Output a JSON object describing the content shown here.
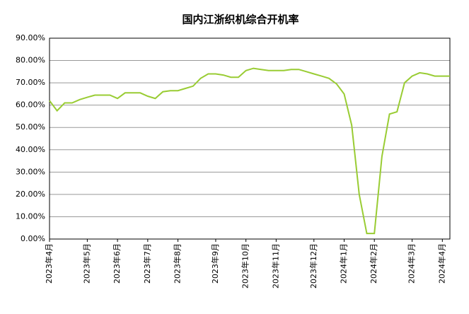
{
  "chart_data": {
    "type": "line",
    "title": "国内江浙织机综合开机率",
    "categories": [
      "2023年4月",
      null,
      null,
      null,
      null,
      "2023年5月",
      null,
      null,
      null,
      "2023年6月",
      null,
      null,
      null,
      "2023年7月",
      null,
      null,
      null,
      "2023年8月",
      null,
      null,
      null,
      null,
      "2023年9月",
      null,
      null,
      null,
      "2023年10月",
      null,
      null,
      null,
      "2023年11月",
      null,
      null,
      null,
      null,
      "2023年12月",
      null,
      null,
      null,
      "2024年1月",
      null,
      null,
      null,
      "2024年2月",
      null,
      null,
      null,
      null,
      "2024年3月",
      null,
      null,
      null,
      "2024年4月",
      null
    ],
    "series": [
      {
        "color": "#99cc33",
        "values": [
          62,
          57.5,
          61,
          61,
          62.5,
          63.5,
          64.5,
          64.5,
          64.5,
          63,
          65.5,
          65.5,
          65.5,
          64,
          63,
          66,
          66.5,
          66.5,
          67.5,
          68.5,
          72,
          74,
          74,
          73.5,
          72.5,
          72.5,
          75.5,
          76.5,
          76,
          75.5,
          75.5,
          75.5,
          76,
          76,
          75,
          74,
          73,
          72,
          69.5,
          65,
          51,
          20,
          2.5,
          2.5,
          37,
          56,
          57,
          70,
          73,
          74.5,
          74,
          73,
          73,
          73
        ]
      }
    ],
    "ylim": [
      0,
      90
    ],
    "yticks": [
      {
        "value": 0,
        "label": "0.00%"
      },
      {
        "value": 10,
        "label": "10.00%"
      },
      {
        "value": 20,
        "label": "20.00%"
      },
      {
        "value": 30,
        "label": "30.00%"
      },
      {
        "value": 40,
        "label": "40.00%"
      },
      {
        "value": 50,
        "label": "50.00%"
      },
      {
        "value": 60,
        "label": "60.00%"
      },
      {
        "value": 70,
        "label": "70.00%"
      },
      {
        "value": 80,
        "label": "80.00%"
      },
      {
        "value": 90,
        "label": "90.00%"
      }
    ],
    "grid": true
  }
}
